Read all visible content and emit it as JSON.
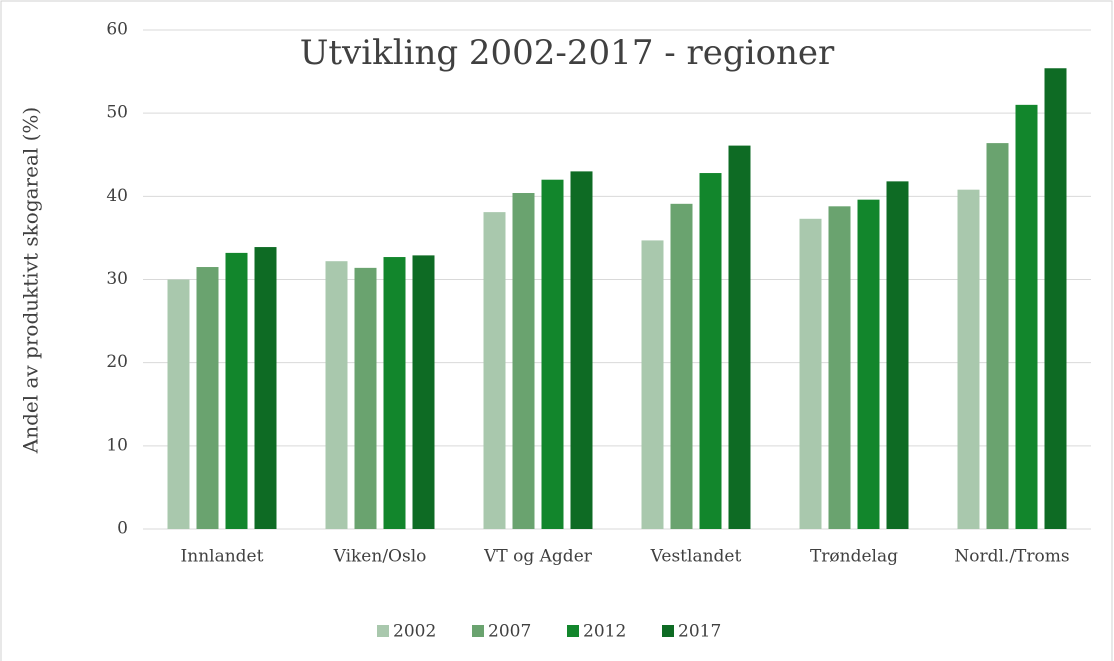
{
  "chart_data": {
    "type": "bar",
    "title": "Utvikling 2002-2017 - regioner",
    "y_label": "Andel av produktivt skogareal (%)",
    "categories": [
      "Innlandet",
      "Viken/Oslo",
      "VT og Agder",
      "Vestlandet",
      "Trøndelag",
      "Nordl./Troms"
    ],
    "series": [
      {
        "name": "2002",
        "color": "#a9c8ad",
        "values": [
          30.0,
          32.2,
          38.1,
          34.7,
          37.3,
          40.8
        ]
      },
      {
        "name": "2007",
        "color": "#6aa36f",
        "values": [
          31.5,
          31.4,
          40.4,
          39.1,
          38.8,
          46.4
        ]
      },
      {
        "name": "2012",
        "color": "#12862c",
        "values": [
          33.2,
          32.7,
          42.0,
          42.8,
          39.6,
          51.0
        ]
      },
      {
        "name": "2017",
        "color": "#0e6b24",
        "values": [
          33.9,
          32.9,
          43.0,
          46.1,
          41.8,
          55.4
        ]
      }
    ],
    "ylim": [
      0,
      60
    ],
    "yticks": [
      0,
      10,
      20,
      30,
      40,
      50,
      60
    ],
    "grid": true,
    "legend": "bottom"
  }
}
